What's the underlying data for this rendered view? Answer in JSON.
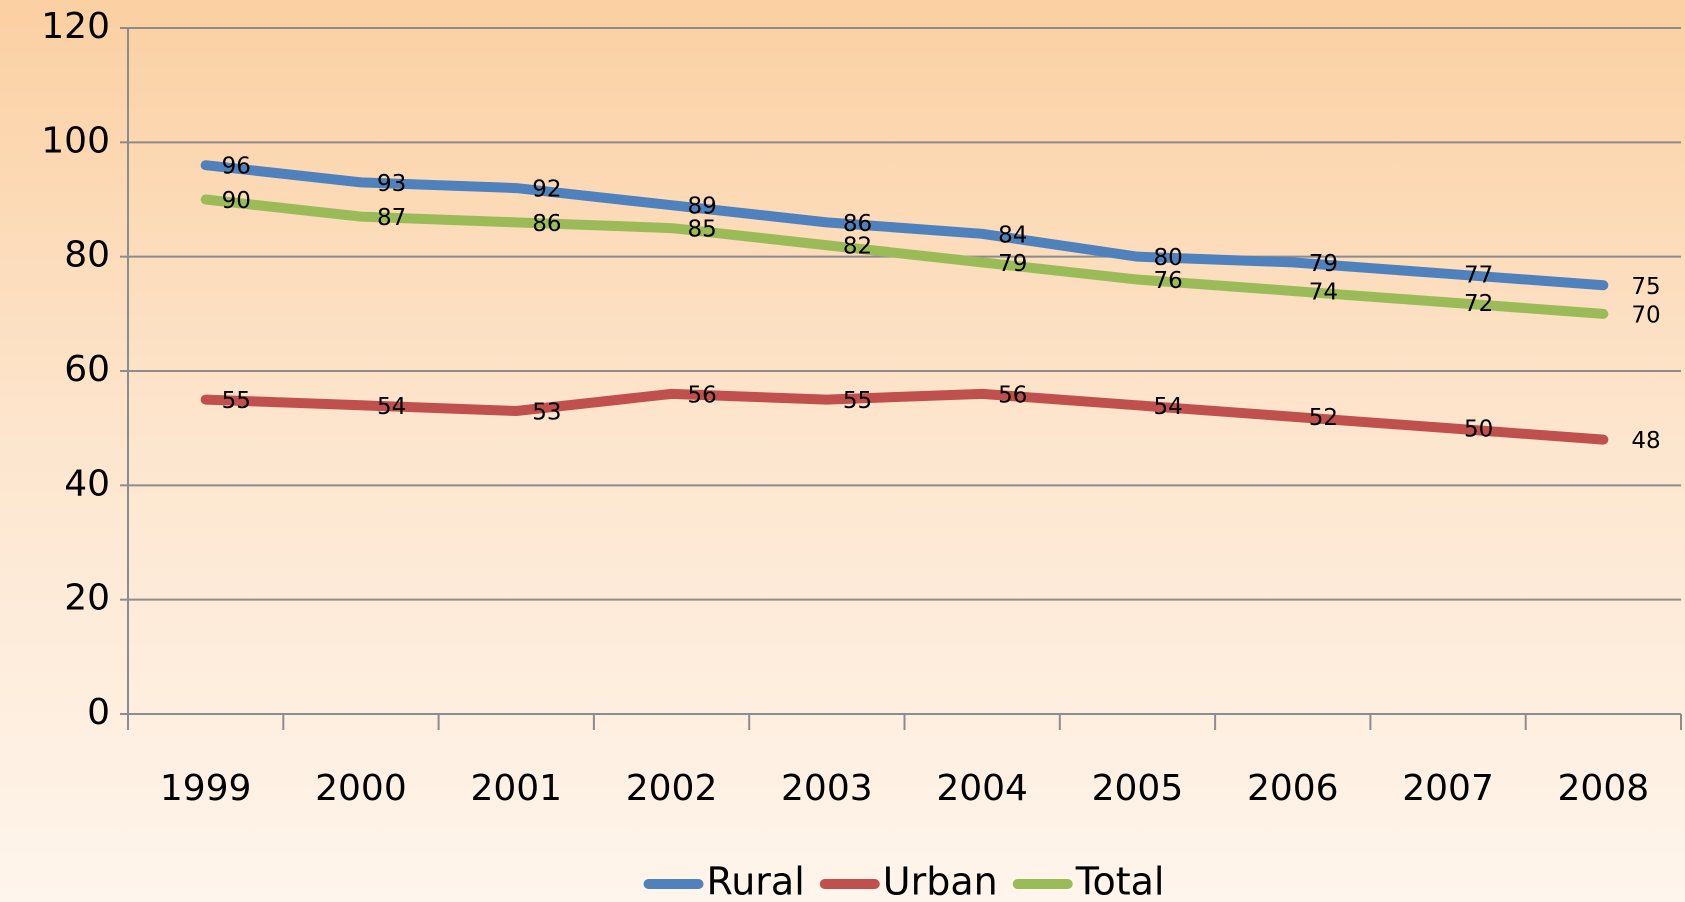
{
  "chart_data": {
    "type": "line",
    "categories": [
      "1999",
      "2000",
      "2001",
      "2002",
      "2003",
      "2004",
      "2005",
      "2006",
      "2007",
      "2008"
    ],
    "series": [
      {
        "name": "Rural",
        "color": "#4f81bd",
        "values": [
          96,
          93,
          92,
          89,
          86,
          84,
          80,
          79,
          77,
          75
        ]
      },
      {
        "name": "Urban",
        "color": "#c0504d",
        "values": [
          55,
          54,
          53,
          56,
          55,
          56,
          54,
          52,
          50,
          48
        ]
      },
      {
        "name": "Total",
        "color": "#9bbb59",
        "values": [
          90,
          87,
          86,
          85,
          82,
          79,
          76,
          74,
          72,
          70
        ]
      }
    ],
    "ylim": [
      0,
      120
    ],
    "yticks": [
      0,
      20,
      40,
      60,
      80,
      100,
      120
    ],
    "grid": true,
    "legend": "bottom"
  }
}
